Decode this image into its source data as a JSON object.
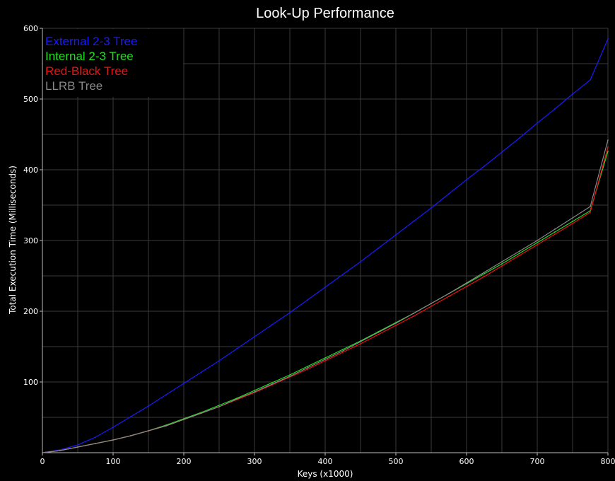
{
  "chart_data": {
    "type": "line",
    "title": "Look-Up Performance",
    "xlabel": "Keys (x1000)",
    "ylabel": "Total Execution Time (Milliseconds)",
    "xlim": [
      0,
      800
    ],
    "ylim": [
      0,
      600
    ],
    "x_ticks": [
      0,
      100,
      200,
      300,
      400,
      500,
      600,
      700,
      800
    ],
    "y_ticks": [
      100,
      200,
      300,
      400,
      500,
      600
    ],
    "grid": true,
    "legend_position": "top-left",
    "x": [
      0,
      25,
      50,
      75,
      100,
      125,
      150,
      175,
      200,
      225,
      250,
      275,
      300,
      325,
      350,
      375,
      400,
      425,
      450,
      475,
      500,
      525,
      550,
      575,
      600,
      625,
      650,
      675,
      700,
      725,
      750,
      775,
      800
    ],
    "series": [
      {
        "name": "External 2-3 Tree",
        "color": "#1a1aff",
        "values": [
          0,
          4,
          11,
          22,
          36,
          51,
          66,
          82,
          98,
          114,
          130,
          147,
          164,
          181,
          198,
          216,
          234,
          252,
          270,
          289,
          308,
          327,
          346,
          366,
          386,
          405,
          425,
          445,
          466,
          486,
          507,
          527,
          585
        ]
      },
      {
        "name": "Internal 2-3 Tree",
        "color": "#22dd22",
        "values": [
          0,
          3,
          8,
          13,
          18,
          24,
          31,
          39,
          48,
          57,
          67,
          77,
          88,
          99,
          110,
          122,
          134,
          146,
          158,
          171,
          184,
          197,
          211,
          225,
          239,
          253,
          267,
          282,
          297,
          312,
          327,
          342,
          426
        ]
      },
      {
        "name": "Red-Black Tree",
        "color": "#ee1111",
        "values": [
          0,
          3,
          8,
          13,
          18,
          24,
          31,
          38,
          47,
          56,
          65,
          75,
          85,
          96,
          107,
          118,
          130,
          142,
          154,
          167,
          180,
          193,
          207,
          221,
          235,
          249,
          264,
          279,
          294,
          309,
          324,
          340,
          432
        ]
      },
      {
        "name": "LLRB Tree",
        "color": "#888888",
        "values": [
          0,
          3,
          8,
          13,
          18,
          24,
          31,
          38,
          47,
          56,
          65,
          76,
          86,
          97,
          108,
          120,
          132,
          144,
          157,
          170,
          183,
          197,
          211,
          225,
          240,
          255,
          270,
          285,
          300,
          316,
          332,
          348,
          442
        ]
      }
    ]
  }
}
